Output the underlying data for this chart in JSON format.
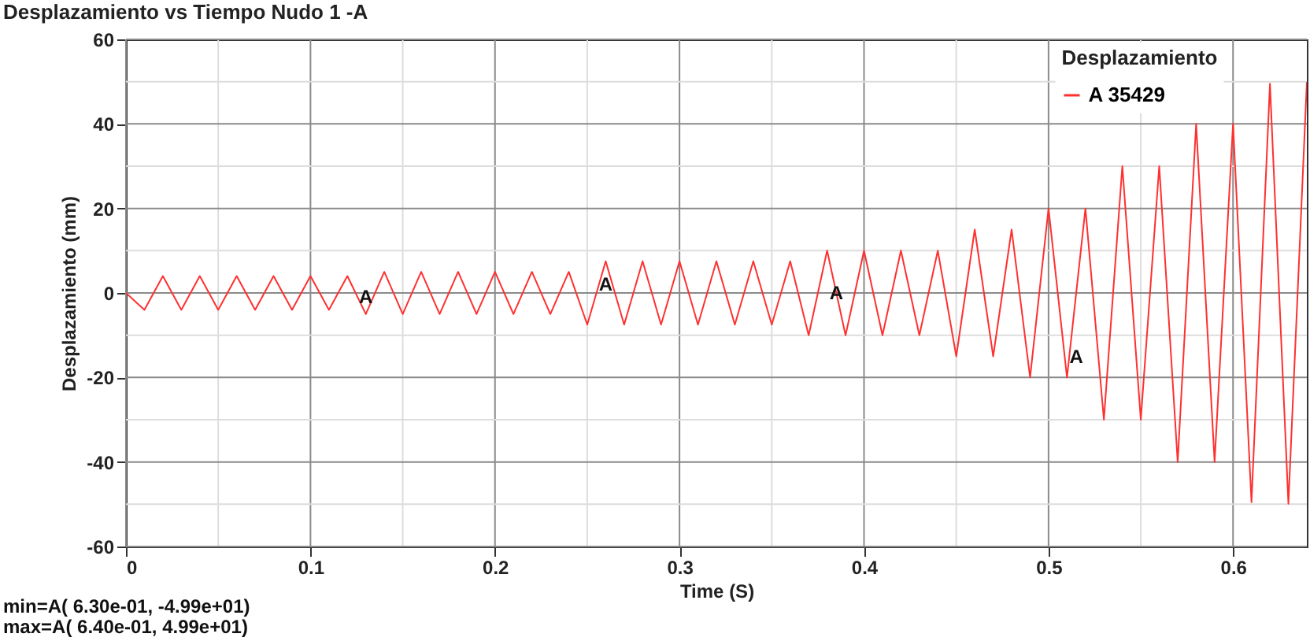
{
  "chart_data": {
    "type": "line",
    "title": "Desplazamiento vs Tiempo Nudo 1 -A",
    "xlabel": "Time (S)",
    "ylabel": "Desplazamiento (mm)",
    "legend_title": "Desplazamiento",
    "x": [
      0,
      0.01,
      0.02,
      0.03,
      0.04,
      0.05,
      0.06,
      0.07,
      0.08,
      0.09,
      0.1,
      0.11,
      0.12,
      0.13,
      0.14,
      0.15,
      0.16,
      0.17,
      0.18,
      0.19,
      0.2,
      0.21,
      0.22,
      0.23,
      0.24,
      0.25,
      0.26,
      0.27,
      0.28,
      0.29,
      0.3,
      0.31,
      0.32,
      0.33,
      0.34,
      0.35,
      0.36,
      0.37,
      0.38,
      0.39,
      0.4,
      0.41,
      0.42,
      0.43,
      0.44,
      0.45,
      0.46,
      0.47,
      0.48,
      0.49,
      0.5,
      0.51,
      0.52,
      0.53,
      0.54,
      0.55,
      0.56,
      0.57,
      0.58,
      0.59,
      0.6,
      0.61,
      0.62,
      0.63,
      0.64
    ],
    "series": [
      {
        "name": "A 35429",
        "color": "#ff3030",
        "values": [
          0,
          -4,
          4,
          -4,
          4,
          -4,
          4,
          -4,
          4,
          -4,
          4,
          -4,
          4,
          -5,
          5,
          -5,
          5,
          -5,
          5,
          -5,
          5,
          -5,
          5,
          -5,
          5,
          -7.5,
          7.5,
          -7.5,
          7.5,
          -7.5,
          7.5,
          -7.5,
          7.5,
          -7.5,
          7.5,
          -7.5,
          7.5,
          -10,
          10,
          -10,
          10,
          -10,
          10,
          -10,
          10,
          -15,
          15,
          -15,
          15,
          -20,
          20,
          -20,
          20,
          -30,
          30,
          -30,
          30,
          -40,
          40,
          -40,
          40,
          -49.5,
          49.5,
          -49.9,
          49.9
        ]
      }
    ],
    "xlim": [
      0,
      0.64
    ],
    "xticks": [
      0,
      {
        "value": 0.05,
        "label": null
      },
      0.1,
      {
        "value": 0.15,
        "label": null
      },
      0.2,
      {
        "value": 0.25,
        "label": null
      },
      0.3,
      {
        "value": 0.35,
        "label": null
      },
      0.4,
      {
        "value": 0.45,
        "label": null
      },
      0.5,
      {
        "value": 0.55,
        "label": null
      },
      0.6
    ],
    "ylim": [
      -60,
      60
    ],
    "yticks": [
      -60,
      {
        "value": -50,
        "label": null
      },
      -40,
      {
        "value": -30,
        "label": null
      },
      -20,
      {
        "value": -10,
        "label": null
      },
      0,
      {
        "value": 10,
        "label": null
      },
      20,
      {
        "value": 30,
        "label": null
      },
      40,
      {
        "value": 50,
        "label": null
      },
      60
    ],
    "grid": true,
    "legend": "top right",
    "marker": "none",
    "line_style": "solid",
    "annotations": [
      {
        "text": "A",
        "x": 0.13,
        "y": -1
      },
      {
        "text": "A",
        "x": 0.26,
        "y": 2
      },
      {
        "text": "A",
        "x": 0.385,
        "y": 0
      },
      {
        "text": "A",
        "x": 0.515,
        "y": -15
      },
      "min=A(   6.30e-01,   -4.99e+01)",
      "max=A(   6.40e-01,    4.99e+01)"
    ]
  }
}
